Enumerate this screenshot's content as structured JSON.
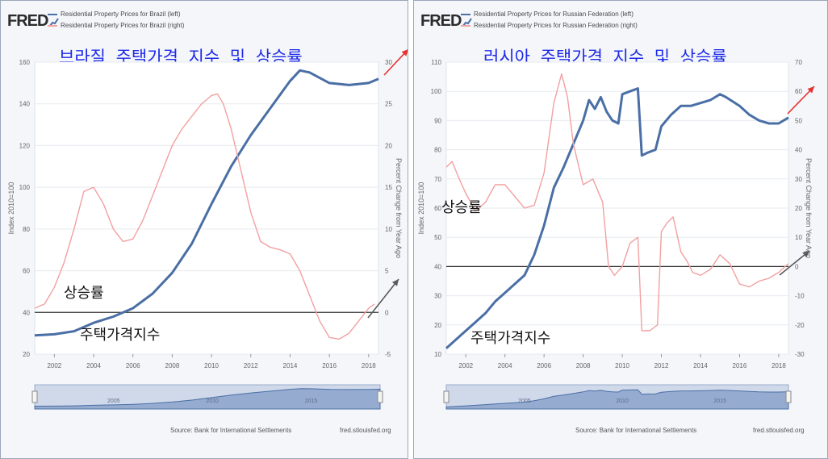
{
  "site_name": "FRED",
  "source_label": "Source: Bank for International Settlements",
  "source_url": "fred.stlouisfed.org",
  "colors": {
    "level_series": "#4a6fa5",
    "yoy_series": "#f2a0a0",
    "annotation_arrow_gray": "#5a5a5a",
    "annotation_arrow_red": "#e83030",
    "title_text": "#1e2ae8"
  },
  "chart_data": [
    {
      "type": "line",
      "title": "브라질 주택가격 지수 및 상승률",
      "ylabel_left": "Index 2010=100",
      "ylabel_right": "Percent Change from Year Ago",
      "left_ticks": [
        "160",
        "140",
        "120",
        "100",
        "80",
        "60",
        "40",
        "20"
      ],
      "right_ticks": [
        "30",
        "25",
        "20",
        "15",
        "10",
        "5",
        "0",
        "-5"
      ],
      "x_ticks": [
        "2002",
        "2004",
        "2006",
        "2008",
        "2010",
        "2012",
        "2014",
        "2016",
        "2018"
      ],
      "ylim_left": [
        20,
        160
      ],
      "ylim_right": [
        -5,
        30
      ],
      "xlim": [
        2001,
        2018.5
      ],
      "zero_line_right": 0,
      "annotation_rate": "상승률",
      "annotation_index": "주택가격지수",
      "navigator_ticks": [
        "2005",
        "2010",
        "2015"
      ],
      "series": [
        {
          "name": "Residential Property Prices for Brazil (left)",
          "axis": "left",
          "x": [
            2001,
            2002,
            2003,
            2004,
            2005,
            2006,
            2007,
            2008,
            2009,
            2010,
            2011,
            2012,
            2013,
            2014,
            2014.5,
            2015,
            2016,
            2017,
            2018,
            2018.5
          ],
          "values": [
            29,
            29.5,
            31,
            35,
            38,
            42,
            49,
            59,
            73,
            92,
            110,
            125,
            138,
            151,
            156,
            155,
            150,
            149,
            150,
            152
          ]
        },
        {
          "name": "Residential Property Prices for Brazil (right)",
          "axis": "right",
          "x": [
            2001,
            2001.5,
            2002,
            2002.5,
            2003,
            2003.5,
            2004,
            2004.5,
            2005,
            2005.5,
            2006,
            2006.5,
            2007,
            2007.5,
            2008,
            2008.5,
            2009,
            2009.5,
            2010,
            2010.3,
            2010.6,
            2011,
            2011.5,
            2012,
            2012.5,
            2013,
            2013.5,
            2014,
            2014.5,
            2015,
            2015.5,
            2016,
            2016.5,
            2017,
            2017.5,
            2018,
            2018.3
          ],
          "values": [
            0.5,
            1,
            3,
            6,
            10,
            14.5,
            15,
            13,
            10,
            8.5,
            8.8,
            11,
            14,
            17,
            20,
            22,
            23.5,
            25,
            26,
            26.2,
            25,
            22,
            17,
            12,
            8.5,
            7.8,
            7.5,
            7,
            5,
            2,
            -1,
            -3,
            -3.2,
            -2.5,
            -1,
            0.5,
            1
          ]
        }
      ]
    },
    {
      "type": "line",
      "title": "러시아 주택가격 지수 및 상승률",
      "ylabel_left": "Index 2010=100",
      "ylabel_right": "Percent Change from Year Ago",
      "left_ticks": [
        "110",
        "100",
        "90",
        "80",
        "70",
        "60",
        "50",
        "40",
        "30",
        "20",
        "10"
      ],
      "right_ticks": [
        "70",
        "60",
        "50",
        "40",
        "30",
        "20",
        "10",
        "0",
        "-10",
        "-20",
        "-30"
      ],
      "x_ticks": [
        "2002",
        "2004",
        "2006",
        "2008",
        "2010",
        "2012",
        "2014",
        "2016",
        "2018"
      ],
      "ylim_left": [
        10,
        110
      ],
      "ylim_right": [
        -30,
        70
      ],
      "xlim": [
        2001,
        2018.5
      ],
      "zero_line_right": 0,
      "annotation_rate": "상승률",
      "annotation_index": "주택가격지수",
      "navigator_ticks": [
        "2005",
        "2010",
        "2015"
      ],
      "series": [
        {
          "name": "Residential Property Prices for Russian Federation (left)",
          "axis": "left",
          "x": [
            2001,
            2001.5,
            2002,
            2002.5,
            2003,
            2003.5,
            2004,
            2004.5,
            2005,
            2005.5,
            2006,
            2006.5,
            2007,
            2007.5,
            2008,
            2008.3,
            2008.6,
            2008.9,
            2009.2,
            2009.5,
            2009.8,
            2010,
            2010.4,
            2010.8,
            2011,
            2011.3,
            2011.7,
            2012,
            2012.5,
            2013,
            2013.5,
            2014,
            2014.5,
            2015,
            2015.3,
            2016,
            2016.5,
            2017,
            2017.5,
            2018,
            2018.5
          ],
          "values": [
            12,
            15,
            18,
            21,
            24,
            28,
            31,
            34,
            37,
            44,
            54,
            67,
            74,
            82,
            90,
            97,
            94,
            98,
            93,
            90,
            89,
            99,
            100,
            101,
            78,
            79,
            80,
            88,
            92,
            95,
            95,
            96,
            97,
            99,
            98,
            95,
            92,
            90,
            89,
            89,
            91
          ]
        },
        {
          "name": "Residential Property Prices for Russian Federation (right)",
          "axis": "right",
          "x": [
            2001,
            2001.3,
            2001.6,
            2002,
            2002.5,
            2003,
            2003.5,
            2004,
            2004.5,
            2005,
            2005.5,
            2006,
            2006.5,
            2006.9,
            2007.2,
            2007.5,
            2008,
            2008.5,
            2009,
            2009.3,
            2009.6,
            2010,
            2010.4,
            2010.8,
            2011,
            2011.4,
            2011.8,
            2012,
            2012.3,
            2012.6,
            2013,
            2013.3,
            2013.6,
            2014,
            2014.5,
            2015,
            2015.5,
            2016,
            2016.5,
            2017,
            2017.5,
            2018,
            2018.5
          ],
          "values": [
            34,
            36,
            31,
            25,
            19,
            22,
            28,
            28,
            24,
            20,
            21,
            32,
            56,
            66,
            58,
            42,
            28,
            30,
            22,
            0,
            -3,
            0,
            8,
            10,
            -22,
            -22,
            -20,
            12,
            15,
            17,
            5,
            2,
            -2,
            -3,
            -1,
            4,
            1,
            -6,
            -7,
            -5,
            -4,
            -2,
            1
          ]
        }
      ]
    }
  ]
}
